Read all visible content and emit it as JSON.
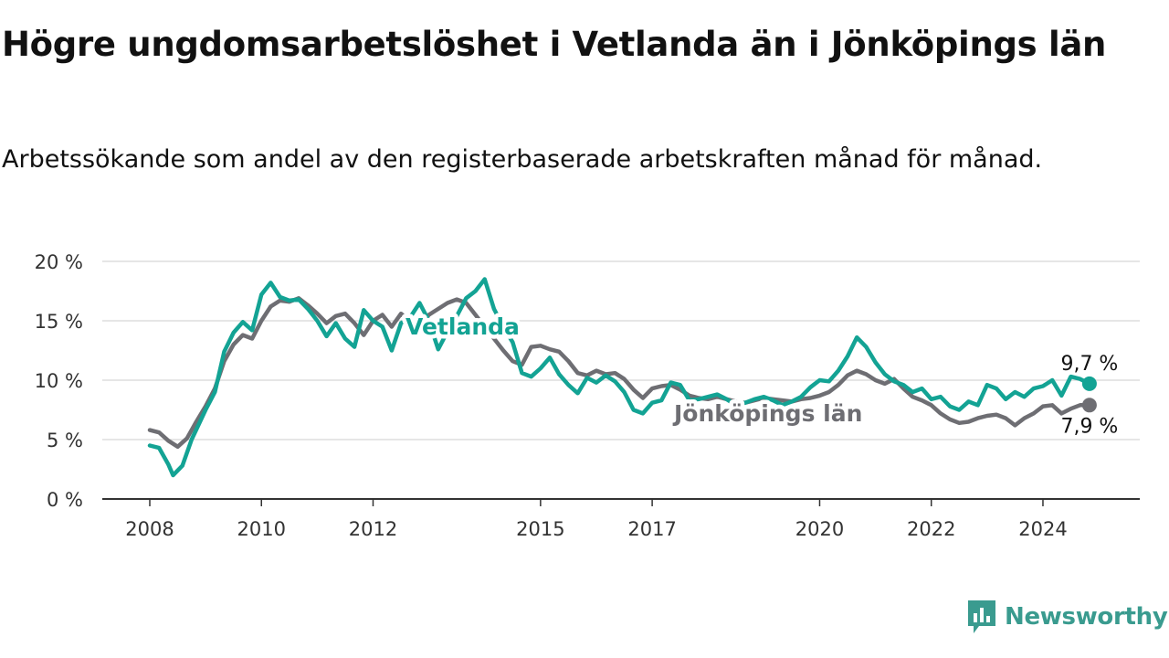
{
  "title": "Högre ungdomsarbetslöshet i Vetlanda än i Jönköpings län",
  "subtitle": "Arbetssökande som andel av den registerbaserade arbetskraften månad för månad.",
  "brand": {
    "name": "Newsworthy",
    "color": "#3a9b8f",
    "icon": "newsworthy-logo-icon"
  },
  "chart_data": {
    "type": "line",
    "title": "Högre ungdomsarbetslöshet i Vetlanda än i Jönköpings län",
    "subtitle": "Arbetssökande som andel av den registerbaserade arbetskraften månad för månad.",
    "xlabel": "",
    "ylabel": "",
    "xlim": [
      "2008-01",
      "2024-12"
    ],
    "ylim": [
      0,
      20
    ],
    "grid": "horizontal",
    "y_ticks": [
      0,
      5,
      10,
      15,
      20
    ],
    "y_tick_labels": [
      "0 %",
      "5 %",
      "10 %",
      "15 %",
      "20 %"
    ],
    "x_ticks": [
      "2008-01",
      "2010-01",
      "2012-01",
      "2015-01",
      "2017-01",
      "2020-01",
      "2022-01",
      "2024-01"
    ],
    "x_tick_labels": [
      "2008",
      "2010",
      "2012",
      "2015",
      "2017",
      "2020",
      "2022",
      "2024"
    ],
    "series": [
      {
        "name": "Jönköpings län",
        "color": "#6e6e73",
        "end_label": "7,9 %",
        "points": [
          [
            "2008-01",
            5.8
          ],
          [
            "2008-03",
            5.6
          ],
          [
            "2008-05",
            4.9
          ],
          [
            "2008-07",
            4.4
          ],
          [
            "2008-09",
            5.1
          ],
          [
            "2008-11",
            6.5
          ],
          [
            "2009-01",
            7.8
          ],
          [
            "2009-03",
            9.3
          ],
          [
            "2009-05",
            11.6
          ],
          [
            "2009-07",
            13.0
          ],
          [
            "2009-09",
            13.8
          ],
          [
            "2009-11",
            13.5
          ],
          [
            "2010-01",
            15.0
          ],
          [
            "2010-03",
            16.2
          ],
          [
            "2010-05",
            16.7
          ],
          [
            "2010-07",
            16.6
          ],
          [
            "2010-09",
            16.9
          ],
          [
            "2010-11",
            16.3
          ],
          [
            "2011-01",
            15.6
          ],
          [
            "2011-03",
            14.8
          ],
          [
            "2011-05",
            15.4
          ],
          [
            "2011-07",
            15.6
          ],
          [
            "2011-09",
            14.8
          ],
          [
            "2011-11",
            13.8
          ],
          [
            "2012-01",
            15.0
          ],
          [
            "2012-03",
            15.5
          ],
          [
            "2012-05",
            14.5
          ],
          [
            "2012-07",
            15.6
          ],
          [
            "2012-09",
            14.9
          ],
          [
            "2012-11",
            14.7
          ],
          [
            "2013-01",
            15.5
          ],
          [
            "2013-03",
            16.0
          ],
          [
            "2013-05",
            16.5
          ],
          [
            "2013-07",
            16.8
          ],
          [
            "2013-09",
            16.5
          ],
          [
            "2013-11",
            15.5
          ],
          [
            "2014-01",
            14.5
          ],
          [
            "2014-03",
            13.5
          ],
          [
            "2014-05",
            12.5
          ],
          [
            "2014-07",
            11.6
          ],
          [
            "2014-09",
            11.3
          ],
          [
            "2014-11",
            12.8
          ],
          [
            "2015-01",
            12.9
          ],
          [
            "2015-03",
            12.6
          ],
          [
            "2015-05",
            12.4
          ],
          [
            "2015-07",
            11.6
          ],
          [
            "2015-09",
            10.6
          ],
          [
            "2015-11",
            10.4
          ],
          [
            "2016-01",
            10.8
          ],
          [
            "2016-03",
            10.5
          ],
          [
            "2016-05",
            10.6
          ],
          [
            "2016-07",
            10.1
          ],
          [
            "2016-09",
            9.2
          ],
          [
            "2016-11",
            8.5
          ],
          [
            "2017-01",
            9.3
          ],
          [
            "2017-03",
            9.5
          ],
          [
            "2017-05",
            9.6
          ],
          [
            "2017-07",
            9.2
          ],
          [
            "2017-09",
            8.7
          ],
          [
            "2017-11",
            8.5
          ],
          [
            "2018-01",
            8.4
          ],
          [
            "2018-03",
            8.6
          ],
          [
            "2018-05",
            8.4
          ],
          [
            "2018-07",
            8.2
          ],
          [
            "2018-09",
            8.1
          ],
          [
            "2018-11",
            8.3
          ],
          [
            "2019-01",
            8.5
          ],
          [
            "2019-03",
            8.4
          ],
          [
            "2019-05",
            8.3
          ],
          [
            "2019-07",
            8.2
          ],
          [
            "2019-09",
            8.4
          ],
          [
            "2019-11",
            8.5
          ],
          [
            "2020-01",
            8.7
          ],
          [
            "2020-03",
            9.0
          ],
          [
            "2020-05",
            9.6
          ],
          [
            "2020-07",
            10.4
          ],
          [
            "2020-09",
            10.8
          ],
          [
            "2020-11",
            10.5
          ],
          [
            "2021-01",
            10.0
          ],
          [
            "2021-03",
            9.7
          ],
          [
            "2021-05",
            10.1
          ],
          [
            "2021-07",
            9.3
          ],
          [
            "2021-09",
            8.6
          ],
          [
            "2021-11",
            8.3
          ],
          [
            "2022-01",
            7.9
          ],
          [
            "2022-03",
            7.2
          ],
          [
            "2022-05",
            6.7
          ],
          [
            "2022-07",
            6.4
          ],
          [
            "2022-09",
            6.5
          ],
          [
            "2022-11",
            6.8
          ],
          [
            "2023-01",
            7.0
          ],
          [
            "2023-03",
            7.1
          ],
          [
            "2023-05",
            6.8
          ],
          [
            "2023-07",
            6.2
          ],
          [
            "2023-09",
            6.8
          ],
          [
            "2023-11",
            7.2
          ],
          [
            "2024-01",
            7.8
          ],
          [
            "2024-03",
            7.9
          ],
          [
            "2024-05",
            7.2
          ],
          [
            "2024-07",
            7.6
          ],
          [
            "2024-09",
            7.9
          ],
          [
            "2024-11",
            7.9
          ]
        ]
      },
      {
        "name": "Vetlanda",
        "color": "#13a394",
        "end_label": "9,7 %",
        "points": [
          [
            "2008-01",
            4.5
          ],
          [
            "2008-03",
            4.3
          ],
          [
            "2008-05",
            2.9
          ],
          [
            "2008-06",
            2.0
          ],
          [
            "2008-08",
            2.8
          ],
          [
            "2008-10",
            5.0
          ],
          [
            "2009-01",
            7.5
          ],
          [
            "2009-03",
            9.0
          ],
          [
            "2009-05",
            12.4
          ],
          [
            "2009-07",
            14.0
          ],
          [
            "2009-09",
            14.9
          ],
          [
            "2009-11",
            14.2
          ],
          [
            "2010-01",
            17.2
          ],
          [
            "2010-03",
            18.2
          ],
          [
            "2010-05",
            17.0
          ],
          [
            "2010-07",
            16.7
          ],
          [
            "2010-09",
            16.8
          ],
          [
            "2010-11",
            16.0
          ],
          [
            "2011-01",
            15.0
          ],
          [
            "2011-03",
            13.7
          ],
          [
            "2011-05",
            14.8
          ],
          [
            "2011-07",
            13.5
          ],
          [
            "2011-09",
            12.8
          ],
          [
            "2011-11",
            15.9
          ],
          [
            "2012-01",
            15.0
          ],
          [
            "2012-03",
            14.5
          ],
          [
            "2012-05",
            12.5
          ],
          [
            "2012-07",
            14.8
          ],
          [
            "2012-09",
            15.3
          ],
          [
            "2012-11",
            16.5
          ],
          [
            "2013-01",
            15.0
          ],
          [
            "2013-03",
            12.6
          ],
          [
            "2013-05",
            14.1
          ],
          [
            "2013-07",
            15.4
          ],
          [
            "2013-09",
            16.9
          ],
          [
            "2013-11",
            17.5
          ],
          [
            "2014-01",
            18.5
          ],
          [
            "2014-03",
            16.0
          ],
          [
            "2014-05",
            14.5
          ],
          [
            "2014-07",
            13.2
          ],
          [
            "2014-09",
            10.6
          ],
          [
            "2014-11",
            10.3
          ],
          [
            "2015-01",
            11.0
          ],
          [
            "2015-03",
            11.9
          ],
          [
            "2015-05",
            10.5
          ],
          [
            "2015-07",
            9.6
          ],
          [
            "2015-09",
            8.9
          ],
          [
            "2015-11",
            10.2
          ],
          [
            "2016-01",
            9.8
          ],
          [
            "2016-03",
            10.4
          ],
          [
            "2016-05",
            9.9
          ],
          [
            "2016-07",
            9.0
          ],
          [
            "2016-09",
            7.5
          ],
          [
            "2016-11",
            7.2
          ],
          [
            "2017-01",
            8.1
          ],
          [
            "2017-03",
            8.3
          ],
          [
            "2017-05",
            9.8
          ],
          [
            "2017-07",
            9.6
          ],
          [
            "2017-09",
            8.3
          ],
          [
            "2017-11",
            8.4
          ],
          [
            "2018-01",
            8.6
          ],
          [
            "2018-03",
            8.8
          ],
          [
            "2018-05",
            8.4
          ],
          [
            "2018-07",
            7.9
          ],
          [
            "2018-09",
            8.1
          ],
          [
            "2018-11",
            8.4
          ],
          [
            "2019-01",
            8.6
          ],
          [
            "2019-03",
            8.3
          ],
          [
            "2019-05",
            7.9
          ],
          [
            "2019-07",
            8.2
          ],
          [
            "2019-09",
            8.6
          ],
          [
            "2019-11",
            9.4
          ],
          [
            "2020-01",
            10.0
          ],
          [
            "2020-03",
            9.9
          ],
          [
            "2020-05",
            10.8
          ],
          [
            "2020-07",
            12.0
          ],
          [
            "2020-09",
            13.6
          ],
          [
            "2020-11",
            12.8
          ],
          [
            "2021-01",
            11.5
          ],
          [
            "2021-03",
            10.5
          ],
          [
            "2021-05",
            9.9
          ],
          [
            "2021-07",
            9.6
          ],
          [
            "2021-09",
            9.0
          ],
          [
            "2021-11",
            9.3
          ],
          [
            "2022-01",
            8.4
          ],
          [
            "2022-03",
            8.6
          ],
          [
            "2022-05",
            7.8
          ],
          [
            "2022-07",
            7.5
          ],
          [
            "2022-09",
            8.2
          ],
          [
            "2022-11",
            7.9
          ],
          [
            "2023-01",
            9.6
          ],
          [
            "2023-03",
            9.3
          ],
          [
            "2023-05",
            8.4
          ],
          [
            "2023-07",
            9.0
          ],
          [
            "2023-09",
            8.6
          ],
          [
            "2023-11",
            9.3
          ],
          [
            "2024-01",
            9.5
          ],
          [
            "2024-03",
            10.0
          ],
          [
            "2024-05",
            8.7
          ],
          [
            "2024-07",
            10.3
          ],
          [
            "2024-09",
            10.1
          ],
          [
            "2024-11",
            9.7
          ]
        ]
      }
    ]
  }
}
